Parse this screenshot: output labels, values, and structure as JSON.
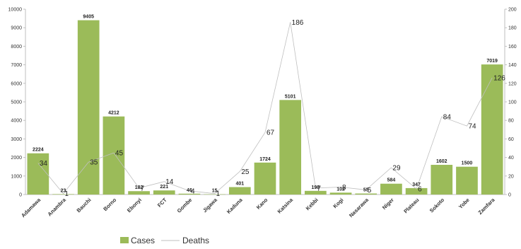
{
  "chart_data": {
    "type": "bar",
    "categories": [
      "Adamawa",
      "Anambra",
      "Bauchi",
      "Borno",
      "Ebonyi",
      "FCT",
      "Gombe",
      "Jigawa",
      "Kaduna",
      "Kano",
      "Katsina",
      "Kebbi",
      "Kogi",
      "Nasarawa",
      "Niger",
      "Plateau",
      "Sokoto",
      "Yobe",
      "Zamfara"
    ],
    "series": [
      {
        "name": "Cases",
        "type": "bar",
        "axis": "left",
        "values": [
          2224,
          23,
          9405,
          4212,
          182,
          221,
          46,
          15,
          401,
          1724,
          5101,
          198,
          102,
          55,
          584,
          347,
          1602,
          1500,
          7019
        ]
      },
      {
        "name": "Deaths",
        "type": "line",
        "axis": "right",
        "values": [
          34,
          1,
          35,
          45,
          7,
          14,
          4,
          1,
          25,
          67,
          186,
          7,
          8,
          5,
          29,
          6,
          84,
          74,
          126
        ]
      }
    ],
    "y_left": {
      "min": 0,
      "max": 10000,
      "ticks": [
        0,
        1000,
        2000,
        3000,
        4000,
        5000,
        6000,
        7000,
        8000,
        9000,
        10000
      ]
    },
    "y_right": {
      "min": 0,
      "max": 200,
      "ticks": [
        0,
        20,
        40,
        60,
        80,
        100,
        120,
        140,
        160,
        180,
        200
      ]
    },
    "legend": {
      "position": "bottom-left"
    },
    "grid": false,
    "colors": {
      "bar": "#9BBB59",
      "line": "#BFBFBF",
      "axis": "#BFBFBF"
    }
  }
}
